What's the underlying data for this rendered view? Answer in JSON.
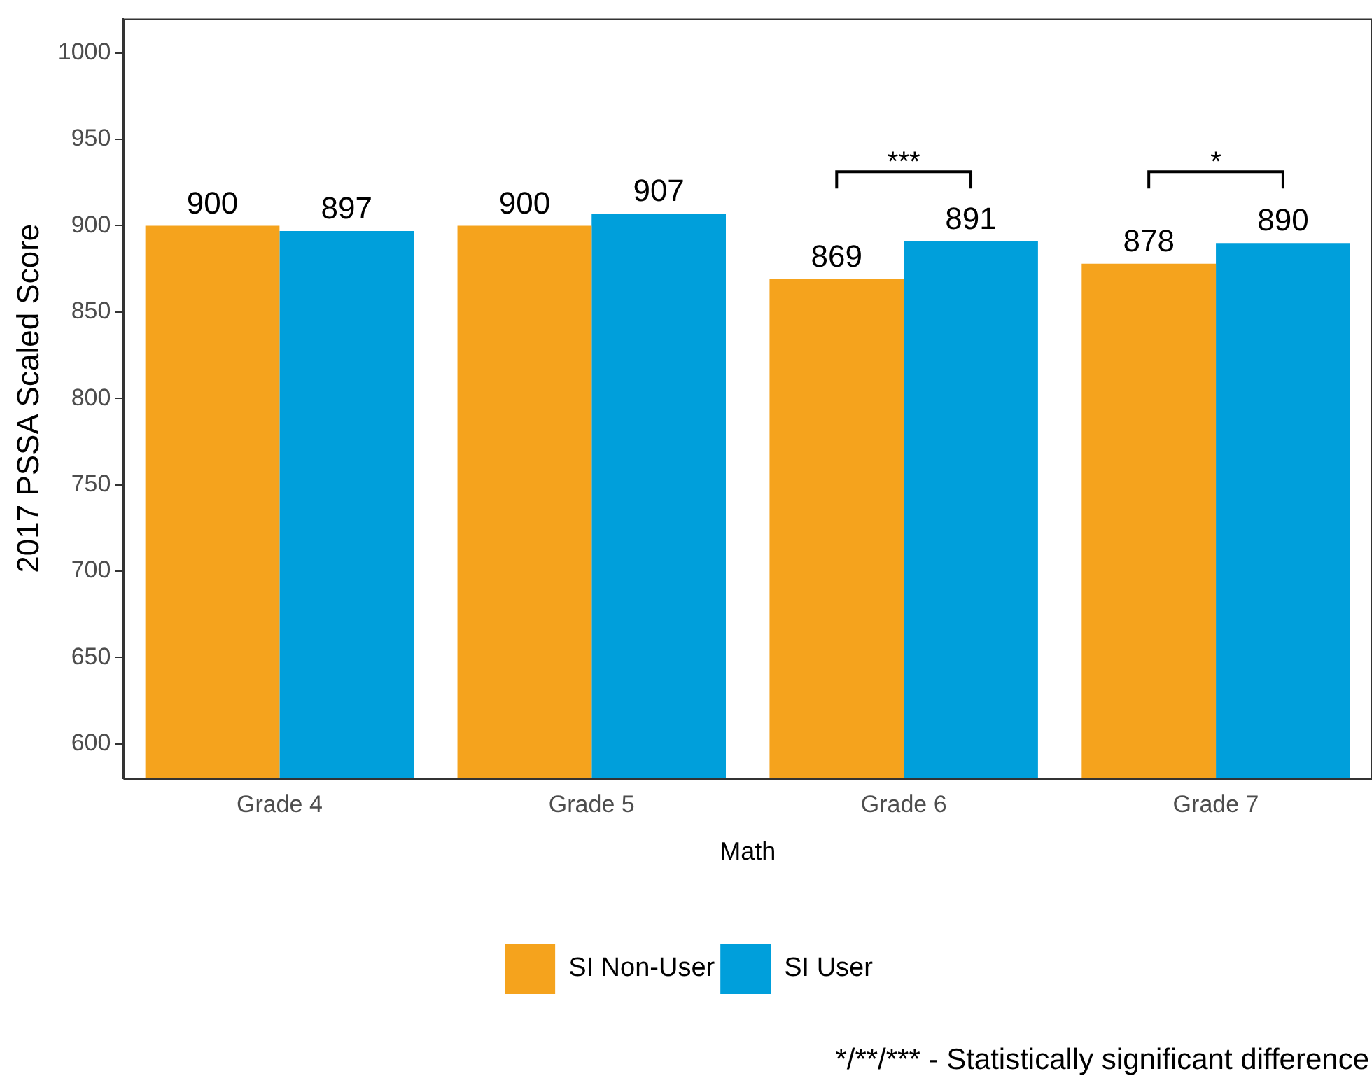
{
  "chart_data": {
    "type": "bar",
    "xlabel": "Math",
    "ylabel": "2017 PSSA Scaled Score",
    "categories": [
      "Grade 4",
      "Grade 5",
      "Grade 6",
      "Grade 7"
    ],
    "series": [
      {
        "name": "SI Non-User",
        "color": "#f5a31d",
        "values": [
          900,
          900,
          869,
          878
        ]
      },
      {
        "name": "SI User",
        "color": "#009fdb",
        "values": [
          897,
          907,
          891,
          890
        ]
      }
    ],
    "ylim": [
      580,
      1020
    ],
    "yticks": [
      600,
      650,
      700,
      750,
      800,
      850,
      900,
      950,
      1000
    ],
    "grid": false,
    "legend": "bottom",
    "data_labels": true,
    "annotations": [
      "***",
      "*",
      "*/**/*** - Statistically significant difference"
    ]
  }
}
